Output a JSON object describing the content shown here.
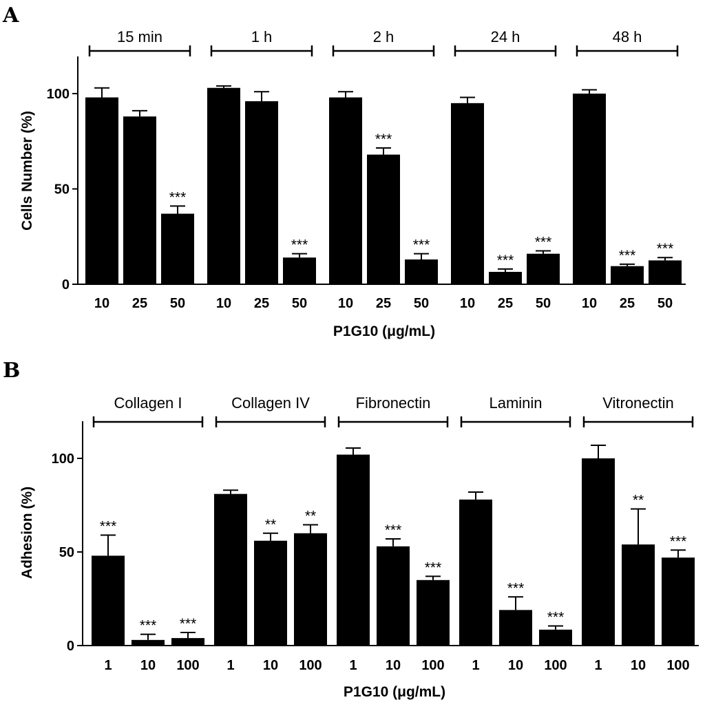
{
  "chart_data": [
    {
      "panel": "A",
      "type": "bar",
      "ylabel": "Cells Number (%)",
      "xlabel": "P1G10 (μg/mL)",
      "ylim": [
        0,
        120
      ],
      "yticks": [
        0,
        50,
        100
      ],
      "categories": [
        "10",
        "25",
        "50"
      ],
      "groups": [
        {
          "label": "15 min",
          "values": [
            98,
            88,
            37
          ],
          "errors": [
            5,
            3,
            4
          ],
          "sig": [
            "",
            "",
            "***"
          ]
        },
        {
          "label": "1 h",
          "values": [
            103,
            96,
            14
          ],
          "errors": [
            1,
            5,
            2
          ],
          "sig": [
            "",
            "",
            "***"
          ]
        },
        {
          "label": "2 h",
          "values": [
            98,
            68,
            13
          ],
          "errors": [
            3,
            3.5,
            3
          ],
          "sig": [
            "",
            "***",
            "***"
          ]
        },
        {
          "label": "24 h",
          "values": [
            95,
            6.5,
            16
          ],
          "errors": [
            3,
            1.5,
            1.5
          ],
          "sig": [
            "",
            "***",
            "***"
          ]
        },
        {
          "label": "48 h",
          "values": [
            100,
            9.5,
            12.5
          ],
          "errors": [
            2,
            1,
            1.5
          ],
          "sig": [
            "",
            "***",
            "***"
          ]
        }
      ]
    },
    {
      "panel": "B",
      "type": "bar",
      "ylabel": "Adhesion (%)",
      "xlabel": "P1G10 (μg/mL)",
      "ylim": [
        0,
        120
      ],
      "yticks": [
        0,
        50,
        100
      ],
      "categories": [
        "1",
        "10",
        "100"
      ],
      "groups": [
        {
          "label": "Collagen  I",
          "values": [
            48,
            3,
            4
          ],
          "errors": [
            11,
            3,
            3
          ],
          "sig": [
            "***",
            "***",
            "***"
          ]
        },
        {
          "label": "Collagen  IV",
          "values": [
            81,
            56,
            60
          ],
          "errors": [
            2,
            4,
            4.5
          ],
          "sig": [
            "",
            "**",
            "**"
          ]
        },
        {
          "label": "Fibronectin",
          "values": [
            102,
            53,
            35
          ],
          "errors": [
            3.5,
            4,
            2
          ],
          "sig": [
            "",
            "***",
            "***"
          ]
        },
        {
          "label": "Laminin",
          "values": [
            78,
            19,
            8.5
          ],
          "errors": [
            4,
            7,
            2
          ],
          "sig": [
            "",
            "***",
            "***"
          ]
        },
        {
          "label": "Vitronectin",
          "values": [
            100,
            54,
            47
          ],
          "errors": [
            7,
            19,
            4
          ],
          "sig": [
            "",
            "**",
            "***"
          ]
        }
      ]
    }
  ]
}
